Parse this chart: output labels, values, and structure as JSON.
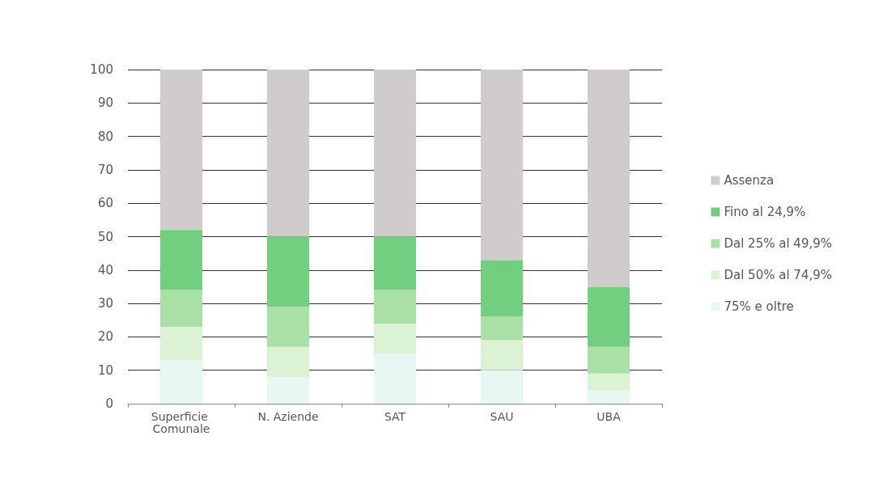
{
  "chart_data": {
    "type": "bar",
    "stacked": true,
    "categories": [
      "Superficie Comunale",
      "N. Aziende",
      "SAT",
      "SAU",
      "UBA"
    ],
    "series": [
      {
        "name": "75% e oltre",
        "color": "#e6f8f1",
        "values": [
          13,
          8,
          15,
          10,
          4
        ]
      },
      {
        "name": "Dal 50% al 74,9%",
        "color": "#dcf2d4",
        "values": [
          10,
          9,
          9,
          9,
          5
        ]
      },
      {
        "name": "Dal 25% al 49,9%",
        "color": "#a9e0a5",
        "values": [
          11,
          12,
          10,
          7,
          8
        ]
      },
      {
        "name": "Fino al 24,9%",
        "color": "#72cf80",
        "values": [
          18,
          21,
          16,
          17,
          18
        ]
      },
      {
        "name": "Assenza",
        "color": "#d0cccc",
        "values": [
          48,
          50,
          50,
          57,
          65
        ]
      }
    ],
    "ylim": [
      0,
      100
    ],
    "yticks": [
      0,
      10,
      20,
      30,
      40,
      50,
      60,
      70,
      80,
      90,
      100
    ],
    "grid": "y",
    "legend": "right"
  }
}
